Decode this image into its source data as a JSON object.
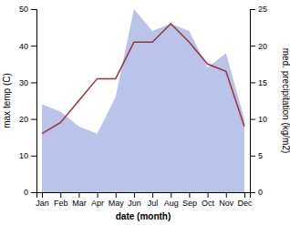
{
  "chart_data": {
    "type": "line",
    "categories": [
      "Jan",
      "Feb",
      "Mar",
      "Apr",
      "May",
      "Jun",
      "Jul",
      "Aug",
      "Sep",
      "Oct",
      "Nov",
      "Dec"
    ],
    "series": [
      {
        "type": "area",
        "axis": "y2",
        "color": "#b3bce8",
        "values": [
          12,
          11,
          9,
          8,
          13,
          25,
          22,
          23,
          22,
          17,
          19,
          10
        ]
      },
      {
        "type": "line",
        "color": "#993333",
        "values": [
          16,
          19,
          25,
          31,
          31,
          41,
          41,
          46,
          41,
          35,
          33,
          18
        ]
      }
    ],
    "xlabel": "date (month)",
    "ylabel": "max temp (C)",
    "y2label": "med. precipitation (kg/m2)",
    "ylim": [
      0,
      50
    ],
    "yticks": [
      0,
      10,
      20,
      30,
      40,
      50
    ],
    "y2lim": [
      0,
      25
    ],
    "y2ticks": [
      0,
      5,
      10,
      15,
      20,
      25
    ]
  }
}
